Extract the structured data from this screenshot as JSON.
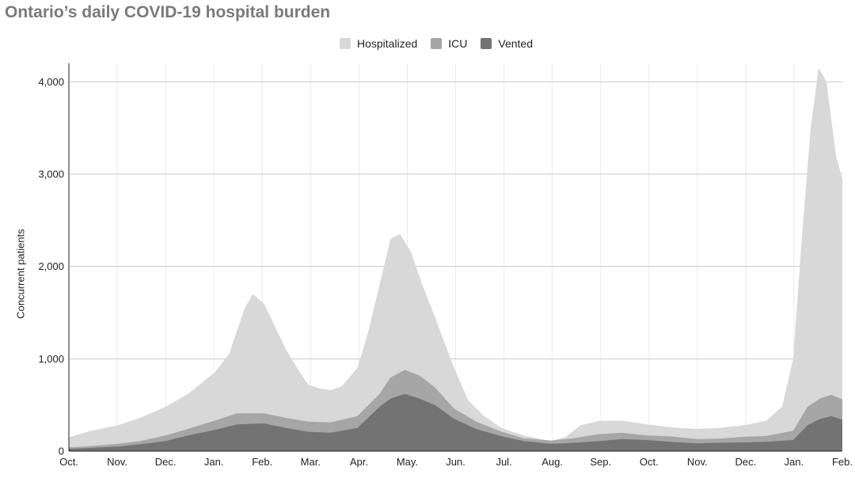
{
  "chart_data": {
    "type": "area",
    "title": "Ontario’s daily COVID-19 hospital burden",
    "xlabel": "",
    "ylabel": "Concurrent patients",
    "ylim": [
      0,
      4200
    ],
    "yticks": [
      0,
      1000,
      2000,
      3000,
      4000
    ],
    "ytick_labels": [
      "0",
      "1,000",
      "2,000",
      "3,000",
      "4,000"
    ],
    "x_start": "2020-10-01",
    "x_end": "2022-02-01",
    "xtick_labels": [
      "Oct.",
      "Nov.",
      "Dec.",
      "Jan.",
      "Feb.",
      "Mar.",
      "Apr.",
      "May.",
      "Jun.",
      "Jul.",
      "Aug.",
      "Sep.",
      "Oct.",
      "Nov.",
      "Dec.",
      "Jan.",
      "Feb."
    ],
    "grid": true,
    "legend": "top-center",
    "series": [
      {
        "name": "Hospitalized",
        "color": "#d8d8d8",
        "points": [
          [
            "2020-10-01",
            150
          ],
          [
            "2020-10-15",
            220
          ],
          [
            "2020-11-01",
            280
          ],
          [
            "2020-11-15",
            360
          ],
          [
            "2020-12-01",
            480
          ],
          [
            "2020-12-15",
            620
          ],
          [
            "2021-01-01",
            850
          ],
          [
            "2021-01-10",
            1050
          ],
          [
            "2021-01-20",
            1550
          ],
          [
            "2021-01-25",
            1700
          ],
          [
            "2021-02-01",
            1600
          ],
          [
            "2021-02-08",
            1350
          ],
          [
            "2021-02-15",
            1100
          ],
          [
            "2021-02-22",
            900
          ],
          [
            "2021-03-01",
            720
          ],
          [
            "2021-03-08",
            680
          ],
          [
            "2021-03-15",
            660
          ],
          [
            "2021-03-22",
            700
          ],
          [
            "2021-04-01",
            900
          ],
          [
            "2021-04-08",
            1300
          ],
          [
            "2021-04-15",
            1800
          ],
          [
            "2021-04-22",
            2300
          ],
          [
            "2021-04-28",
            2350
          ],
          [
            "2021-05-05",
            2150
          ],
          [
            "2021-05-12",
            1800
          ],
          [
            "2021-05-20",
            1450
          ],
          [
            "2021-06-01",
            900
          ],
          [
            "2021-06-10",
            550
          ],
          [
            "2021-06-20",
            380
          ],
          [
            "2021-07-01",
            250
          ],
          [
            "2021-07-15",
            170
          ],
          [
            "2021-08-01",
            110
          ],
          [
            "2021-08-10",
            150
          ],
          [
            "2021-08-20",
            280
          ],
          [
            "2021-09-01",
            330
          ],
          [
            "2021-09-15",
            330
          ],
          [
            "2021-10-01",
            290
          ],
          [
            "2021-10-15",
            260
          ],
          [
            "2021-11-01",
            240
          ],
          [
            "2021-11-15",
            250
          ],
          [
            "2021-12-01",
            280
          ],
          [
            "2021-12-15",
            330
          ],
          [
            "2021-12-25",
            480
          ],
          [
            "2022-01-01",
            1000
          ],
          [
            "2022-01-06",
            2200
          ],
          [
            "2022-01-12",
            3500
          ],
          [
            "2022-01-17",
            4150
          ],
          [
            "2022-01-22",
            4000
          ],
          [
            "2022-01-28",
            3200
          ],
          [
            "2022-02-01",
            2950
          ]
        ]
      },
      {
        "name": "ICU",
        "color": "#a6a6a6",
        "points": [
          [
            "2020-10-01",
            40
          ],
          [
            "2020-10-15",
            55
          ],
          [
            "2020-11-01",
            80
          ],
          [
            "2020-11-15",
            110
          ],
          [
            "2020-12-01",
            170
          ],
          [
            "2020-12-15",
            240
          ],
          [
            "2021-01-01",
            330
          ],
          [
            "2021-01-15",
            410
          ],
          [
            "2021-02-01",
            410
          ],
          [
            "2021-02-15",
            360
          ],
          [
            "2021-03-01",
            320
          ],
          [
            "2021-03-15",
            310
          ],
          [
            "2021-04-01",
            380
          ],
          [
            "2021-04-15",
            620
          ],
          [
            "2021-04-22",
            800
          ],
          [
            "2021-05-01",
            880
          ],
          [
            "2021-05-10",
            820
          ],
          [
            "2021-05-20",
            690
          ],
          [
            "2021-06-01",
            460
          ],
          [
            "2021-06-15",
            320
          ],
          [
            "2021-07-01",
            210
          ],
          [
            "2021-07-15",
            140
          ],
          [
            "2021-08-01",
            115
          ],
          [
            "2021-08-15",
            140
          ],
          [
            "2021-09-01",
            185
          ],
          [
            "2021-09-15",
            200
          ],
          [
            "2021-10-01",
            170
          ],
          [
            "2021-10-15",
            160
          ],
          [
            "2021-11-01",
            130
          ],
          [
            "2021-11-15",
            135
          ],
          [
            "2021-12-01",
            155
          ],
          [
            "2021-12-15",
            165
          ],
          [
            "2022-01-01",
            220
          ],
          [
            "2022-01-10",
            480
          ],
          [
            "2022-01-18",
            570
          ],
          [
            "2022-01-25",
            610
          ],
          [
            "2022-02-01",
            560
          ]
        ]
      },
      {
        "name": "Vented",
        "color": "#737373",
        "points": [
          [
            "2020-10-01",
            25
          ],
          [
            "2020-10-15",
            35
          ],
          [
            "2020-11-01",
            50
          ],
          [
            "2020-11-15",
            75
          ],
          [
            "2020-12-01",
            110
          ],
          [
            "2020-12-15",
            170
          ],
          [
            "2021-01-01",
            230
          ],
          [
            "2021-01-15",
            290
          ],
          [
            "2021-02-01",
            300
          ],
          [
            "2021-02-15",
            250
          ],
          [
            "2021-03-01",
            210
          ],
          [
            "2021-03-15",
            200
          ],
          [
            "2021-04-01",
            250
          ],
          [
            "2021-04-15",
            480
          ],
          [
            "2021-04-22",
            570
          ],
          [
            "2021-05-01",
            620
          ],
          [
            "2021-05-10",
            570
          ],
          [
            "2021-05-20",
            500
          ],
          [
            "2021-06-01",
            350
          ],
          [
            "2021-06-15",
            240
          ],
          [
            "2021-07-01",
            160
          ],
          [
            "2021-07-15",
            110
          ],
          [
            "2021-08-01",
            80
          ],
          [
            "2021-08-15",
            90
          ],
          [
            "2021-09-01",
            110
          ],
          [
            "2021-09-15",
            130
          ],
          [
            "2021-10-01",
            120
          ],
          [
            "2021-10-15",
            100
          ],
          [
            "2021-11-01",
            85
          ],
          [
            "2021-11-15",
            90
          ],
          [
            "2021-12-01",
            95
          ],
          [
            "2021-12-15",
            100
          ],
          [
            "2022-01-01",
            120
          ],
          [
            "2022-01-10",
            280
          ],
          [
            "2022-01-18",
            350
          ],
          [
            "2022-01-25",
            380
          ],
          [
            "2022-02-01",
            340
          ]
        ]
      }
    ]
  }
}
